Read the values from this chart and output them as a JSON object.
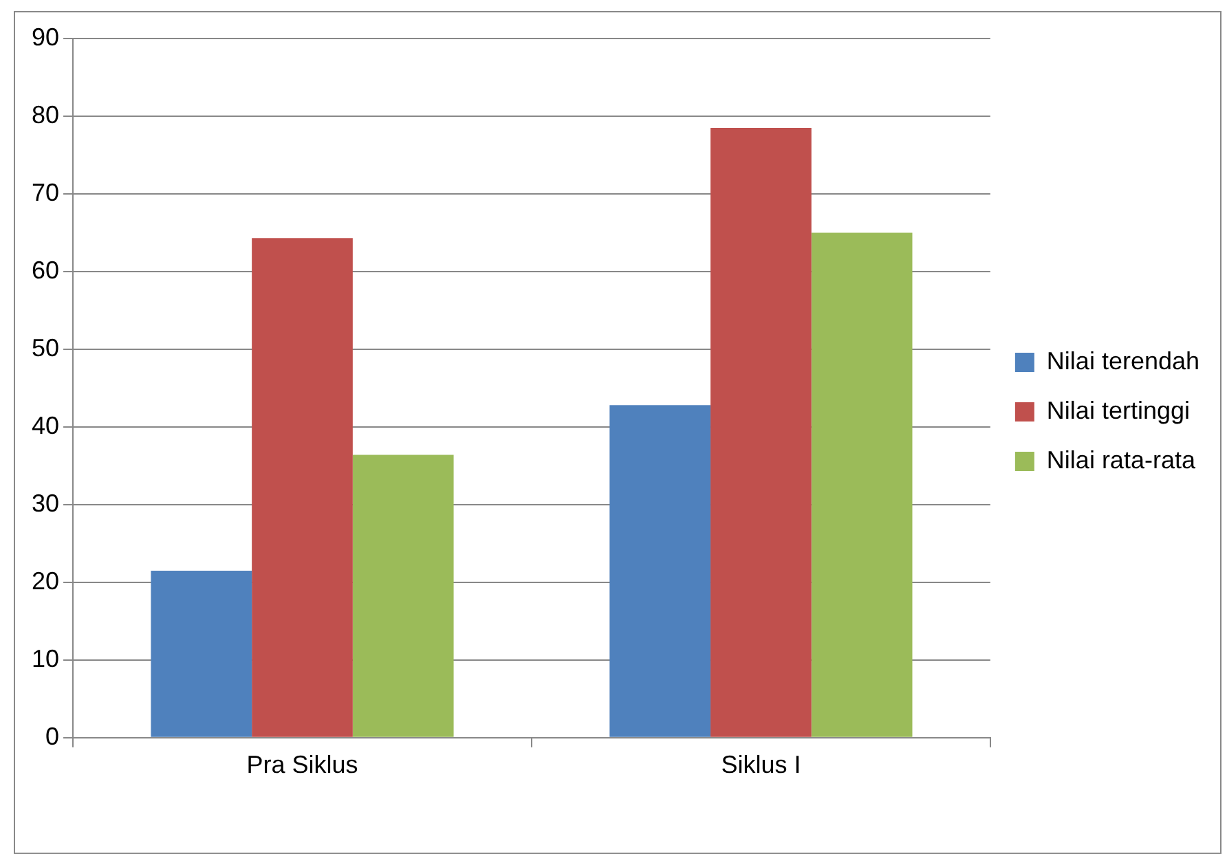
{
  "chart_data": {
    "type": "bar",
    "categories": [
      "Pra Siklus",
      "Siklus I"
    ],
    "series": [
      {
        "name": "Nilai terendah",
        "color": "#4f81bd",
        "values": [
          21.5,
          42.8
        ]
      },
      {
        "name": "Nilai tertinggi",
        "color": "#c0504d",
        "values": [
          64.3,
          78.5
        ]
      },
      {
        "name": "Nilai rata-rata",
        "color": "#9bbb59",
        "values": [
          36.4,
          65.0
        ]
      }
    ],
    "ylim": [
      0,
      90
    ],
    "yticks": [
      0,
      10,
      20,
      30,
      40,
      50,
      60,
      70,
      80,
      90
    ],
    "grid": "y",
    "legend": "right"
  }
}
